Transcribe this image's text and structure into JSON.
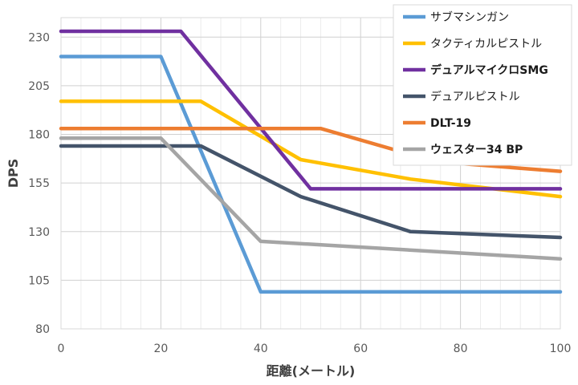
{
  "chart_data": {
    "type": "line",
    "xlabel": "距離(メートル)",
    "ylabel": "DPS",
    "xlim": [
      0,
      100
    ],
    "ylim": [
      80,
      240
    ],
    "xticks": [
      "0",
      "20",
      "40",
      "60",
      "80",
      "100"
    ],
    "yticks": [
      "80",
      "105",
      "130",
      "155",
      "180",
      "205",
      "230"
    ],
    "grid": true,
    "legend_position": "top-right",
    "series": [
      {
        "name": "サブマシンガン",
        "color": "#5b9bd5",
        "bold": false,
        "points": [
          [
            0,
            220
          ],
          [
            20,
            220
          ],
          [
            40,
            99
          ],
          [
            100,
            99
          ]
        ]
      },
      {
        "name": "タクティカルピストル",
        "color": "#ffc000",
        "bold": false,
        "points": [
          [
            0,
            197
          ],
          [
            28,
            197
          ],
          [
            48,
            167
          ],
          [
            70,
            157
          ],
          [
            100,
            148
          ]
        ]
      },
      {
        "name": "デュアルマイクロSMG",
        "color": "#7030a0",
        "bold": true,
        "points": [
          [
            0,
            233
          ],
          [
            24,
            233
          ],
          [
            50,
            152
          ],
          [
            100,
            152
          ]
        ]
      },
      {
        "name": "デュアルピストル",
        "color": "#44546a",
        "bold": false,
        "points": [
          [
            0,
            174
          ],
          [
            28,
            174
          ],
          [
            48,
            148
          ],
          [
            70,
            130
          ],
          [
            100,
            127
          ]
        ]
      },
      {
        "name": "DLT-19",
        "color": "#ed7d31",
        "bold": true,
        "points": [
          [
            0,
            183
          ],
          [
            52,
            183
          ],
          [
            75,
            166
          ],
          [
            100,
            161
          ]
        ]
      },
      {
        "name": "ウェスター34 BP",
        "color": "#a5a5a5",
        "bold": true,
        "points": [
          [
            0,
            178
          ],
          [
            20,
            178
          ],
          [
            40,
            125
          ],
          [
            100,
            116
          ]
        ]
      }
    ]
  }
}
